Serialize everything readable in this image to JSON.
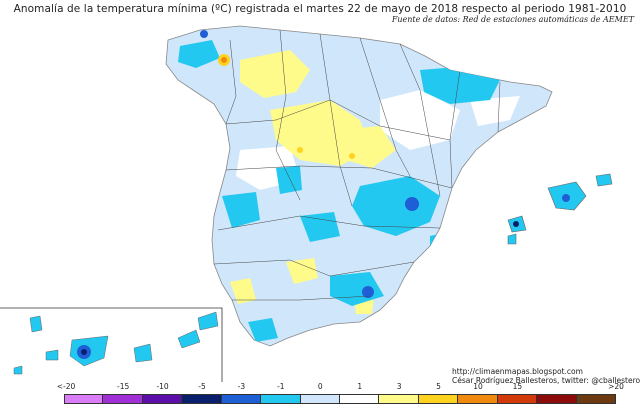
{
  "title": "Anomalía de la temperatura mínima (ºC) registrada el martes 22 de mayo de 2018 respecto al periodo 1981-2010",
  "source": "Fuente de datos: Red de estaciones automáticas de AEMET",
  "credit": {
    "url": "http://climaenmapas.blogspot.com",
    "author": "César Rodríguez Ballesteros, twitter: @cballesteros"
  },
  "legend": {
    "labels": [
      "<-20",
      "-15",
      "-10",
      "-5",
      "-3",
      "-1",
      "0",
      "1",
      "3",
      "5",
      "10",
      "15",
      ">20"
    ],
    "colors": [
      "#d97ef7",
      "#a12fd6",
      "#5b0fa8",
      "#0a1f6b",
      "#1f5fd6",
      "#23c8f0",
      "#cfe6fb",
      "#ffffff",
      "#fffb8a",
      "#ffd21f",
      "#f08a0f",
      "#d23a0c",
      "#8b0a0a",
      "#6b3a10"
    ]
  },
  "regions": [
    {
      "name": "peninsula",
      "fill": "#cfe6fb"
    },
    {
      "name": "balearic-islands",
      "fill": "#23c8f0"
    },
    {
      "name": "canary-islands",
      "fill": "#23c8f0"
    }
  ]
}
